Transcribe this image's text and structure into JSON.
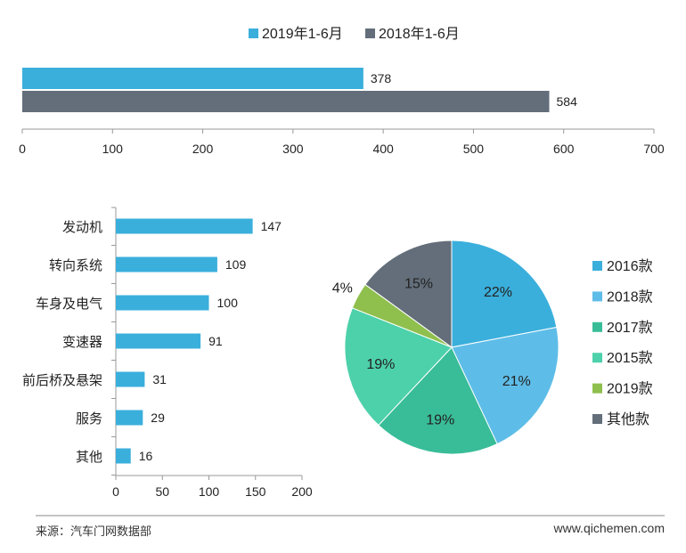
{
  "colors": {
    "blue": "#3aafdc",
    "gray": "#636e7a",
    "axis": "#999999"
  },
  "chart_data": [
    {
      "type": "bar",
      "orientation": "horizontal",
      "categories": [
        ""
      ],
      "series": [
        {
          "name": "2019年1-6月",
          "values": [
            378
          ],
          "color": "#3aafdc"
        },
        {
          "name": "2018年1-6月",
          "values": [
            584
          ],
          "color": "#636e7a"
        }
      ],
      "xlim": [
        0,
        700
      ],
      "xticks": [
        0,
        100,
        200,
        300,
        400,
        500,
        600,
        700
      ],
      "legend": "top-center",
      "grid": false
    },
    {
      "type": "bar",
      "orientation": "horizontal",
      "categories": [
        "发动机",
        "转向系统",
        "车身及电气",
        "变速器",
        "前后桥及悬架",
        "服务",
        "其他"
      ],
      "values": [
        147,
        109,
        100,
        91,
        31,
        29,
        16
      ],
      "color": "#3aafdc",
      "xlim": [
        0,
        200
      ],
      "xticks": [
        0,
        50,
        100,
        150,
        200
      ],
      "grid": false
    },
    {
      "type": "pie",
      "labels": [
        "2016款",
        "2018款",
        "2017款",
        "2015款",
        "2019款",
        "其他款"
      ],
      "values": [
        22,
        21,
        19,
        19,
        4,
        15
      ],
      "value_labels": [
        "22%",
        "21%",
        "19%",
        "19%",
        "4%",
        "15%"
      ],
      "colors": [
        "#3aafdc",
        "#5ebde8",
        "#39bd98",
        "#4dd1aa",
        "#8fbf4d",
        "#636e7a"
      ],
      "legend": "right"
    }
  ],
  "footer": {
    "source": "来源：汽车门网数据部",
    "website": "www.qichemen.com"
  }
}
